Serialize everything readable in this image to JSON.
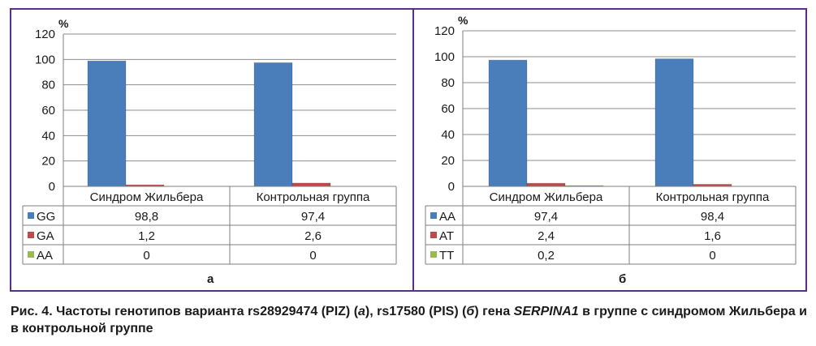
{
  "caption": {
    "prefix": "Рис. 4. Частоты генотипов варианта rs28929474 (PIZ) (",
    "a": "а",
    "mid": "), rs17580 (PIS) (",
    "b": "б",
    "pre_gene": ") гена ",
    "gene": "SERPINA1",
    "suffix": " в группе с синдромом Жильбера и в контрольной группе"
  },
  "panel_labels": [
    "а",
    "б"
  ],
  "chart_data": [
    {
      "type": "bar",
      "panel": "а",
      "ylabel": "%",
      "ylim": [
        0,
        120
      ],
      "yticks": [
        0,
        20,
        40,
        60,
        80,
        100,
        120
      ],
      "grid": true,
      "categories": [
        "Синдром Жильбера",
        "Контрольная группа"
      ],
      "series": [
        {
          "name": "GG",
          "color": "#4a7ebb",
          "values": [
            98.8,
            97.4
          ],
          "labels": [
            "98,8",
            "97,4"
          ]
        },
        {
          "name": "GA",
          "color": "#be4b48",
          "values": [
            1.2,
            2.6
          ],
          "labels": [
            "1,2",
            "2,6"
          ]
        },
        {
          "name": "AA",
          "color": "#98b954",
          "values": [
            0,
            0
          ],
          "labels": [
            "0",
            "0"
          ]
        }
      ]
    },
    {
      "type": "bar",
      "panel": "б",
      "ylabel": "%",
      "ylim": [
        0,
        120
      ],
      "yticks": [
        0,
        20,
        40,
        60,
        80,
        100,
        120
      ],
      "grid": true,
      "categories": [
        "Синдром Жильбера",
        "Контрольная группа"
      ],
      "series": [
        {
          "name": "AA",
          "color": "#4a7ebb",
          "values": [
            97.4,
            98.4
          ],
          "labels": [
            "97,4",
            "98,4"
          ]
        },
        {
          "name": "AT",
          "color": "#be4b48",
          "values": [
            2.4,
            1.6
          ],
          "labels": [
            "2,4",
            "1,6"
          ]
        },
        {
          "name": "TT",
          "color": "#98b954",
          "values": [
            0.2,
            0
          ],
          "labels": [
            "0,2",
            "0"
          ]
        }
      ]
    }
  ]
}
